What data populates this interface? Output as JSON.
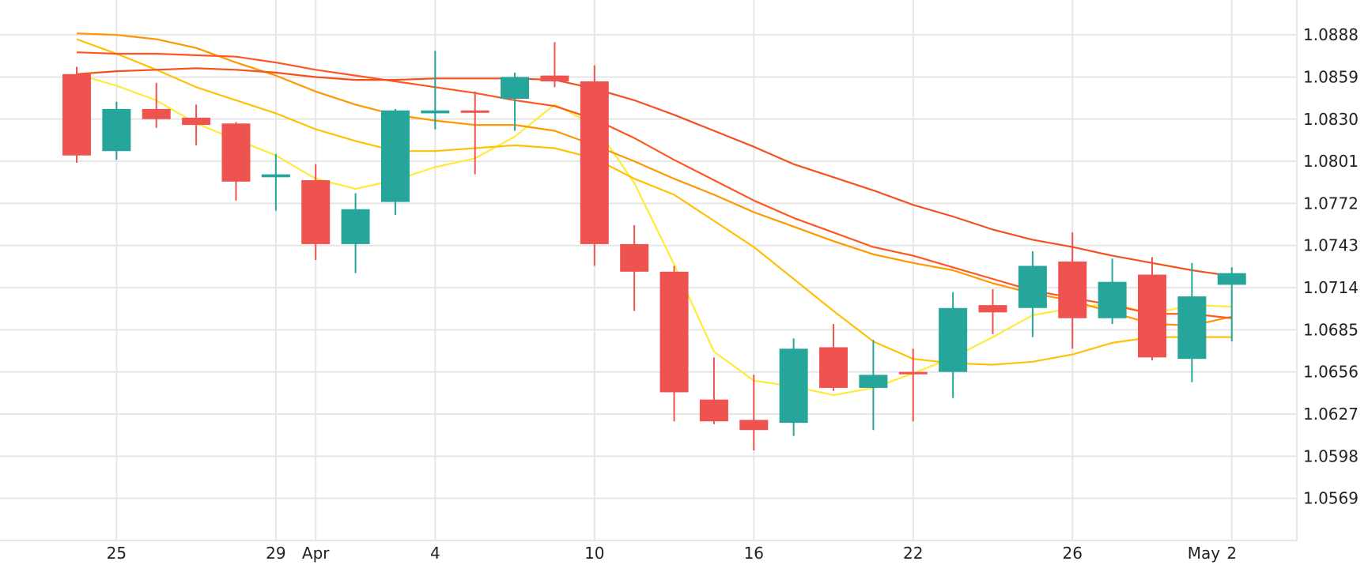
{
  "chart_data": {
    "type": "candlestick",
    "grid": true,
    "y_axis": {
      "position": "right",
      "min": 1.054,
      "max": 1.0912,
      "ticks": [
        "1.0888",
        "1.0859",
        "1.0830",
        "1.0801",
        "1.0772",
        "1.0743",
        "1.0714",
        "1.0685",
        "1.0656",
        "1.0627",
        "1.0598",
        "1.0569"
      ]
    },
    "x_axis": {
      "min": 0,
      "max": 30.6,
      "ticks": [
        {
          "i": 1,
          "label": "25"
        },
        {
          "i": 5,
          "label": "29"
        },
        {
          "i": 6,
          "label": "Apr"
        },
        {
          "i": 9,
          "label": "4"
        },
        {
          "i": 13,
          "label": "10"
        },
        {
          "i": 17,
          "label": "16"
        },
        {
          "i": 21,
          "label": "22"
        },
        {
          "i": 25,
          "label": "26"
        },
        {
          "i": 28.3,
          "label": "May"
        },
        {
          "i": 29,
          "label": "2"
        }
      ]
    },
    "colors": {
      "up": "#26a69a",
      "down": "#ef5350",
      "grid": "#e6e6e6",
      "ma": [
        "#ffeb3b",
        "#ffc107",
        "#ff9800",
        "#ff5722"
      ]
    },
    "candles": [
      [
        0,
        1.0861,
        1.0866,
        1.08,
        1.0805
      ],
      [
        1,
        1.0808,
        1.0842,
        1.0802,
        1.0837
      ],
      [
        2,
        1.0837,
        1.0855,
        1.0824,
        1.083
      ],
      [
        3,
        1.0831,
        1.084,
        1.0812,
        1.0826
      ],
      [
        4,
        1.0827,
        1.0828,
        1.0774,
        1.0787
      ],
      [
        5,
        1.079,
        1.0806,
        1.0767,
        1.0792
      ],
      [
        6,
        1.0788,
        1.0799,
        1.0733,
        1.0744
      ],
      [
        7,
        1.0744,
        1.0779,
        1.0724,
        1.0768
      ],
      [
        8,
        1.0773,
        1.0837,
        1.0764,
        1.0836
      ],
      [
        9,
        1.0834,
        1.0877,
        1.0823,
        1.0836
      ],
      [
        10,
        1.0836,
        1.0849,
        1.0792,
        1.0835
      ],
      [
        11,
        1.0844,
        1.0862,
        1.0822,
        1.0859
      ],
      [
        12,
        1.086,
        1.0883,
        1.0852,
        1.0856
      ],
      [
        13,
        1.0856,
        1.0867,
        1.0729,
        1.0744
      ],
      [
        14,
        1.0744,
        1.0757,
        1.0698,
        1.0725
      ],
      [
        15,
        1.0725,
        1.0729,
        1.0622,
        1.0642
      ],
      [
        16,
        1.0637,
        1.0666,
        1.062,
        1.0622
      ],
      [
        17,
        1.0623,
        1.0654,
        1.0602,
        1.0616
      ],
      [
        18,
        1.0621,
        1.0679,
        1.0612,
        1.0672
      ],
      [
        19,
        1.0673,
        1.0689,
        1.0643,
        1.0645
      ],
      [
        20,
        1.0645,
        1.0678,
        1.0616,
        1.0654
      ],
      [
        21,
        1.0656,
        1.0672,
        1.0622,
        1.0655
      ],
      [
        22,
        1.0656,
        1.0711,
        1.0638,
        1.07
      ],
      [
        23,
        1.0702,
        1.0713,
        1.0682,
        1.0697
      ],
      [
        24,
        1.07,
        1.0739,
        1.068,
        1.0729
      ],
      [
        25,
        1.0732,
        1.0752,
        1.0672,
        1.0693
      ],
      [
        26,
        1.0693,
        1.0734,
        1.0689,
        1.0718
      ],
      [
        27,
        1.0723,
        1.0735,
        1.0664,
        1.0666
      ],
      [
        28,
        1.0665,
        1.0731,
        1.0649,
        1.0708
      ],
      [
        29,
        1.0716,
        1.0728,
        1.0677,
        1.0724
      ]
    ],
    "moving_averages": [
      {
        "color": "#ffeb3b",
        "values": [
          [
            0,
            1.0861
          ],
          [
            1,
            1.0853
          ],
          [
            2,
            1.0843
          ],
          [
            3,
            1.0827
          ],
          [
            4,
            1.0816
          ],
          [
            5,
            1.0805
          ],
          [
            6,
            1.0789
          ],
          [
            7,
            1.0782
          ],
          [
            8,
            1.0788
          ],
          [
            9,
            1.0797
          ],
          [
            10,
            1.0803
          ],
          [
            11,
            1.0818
          ],
          [
            12,
            1.084
          ],
          [
            13,
            1.0826
          ],
          [
            14,
            1.0786
          ],
          [
            15,
            1.073
          ],
          [
            16,
            1.067
          ],
          [
            17,
            1.065
          ],
          [
            18,
            1.0646
          ],
          [
            19,
            1.064
          ],
          [
            20,
            1.0645
          ],
          [
            21,
            1.0655
          ],
          [
            22,
            1.0666
          ],
          [
            23,
            1.068
          ],
          [
            24,
            1.0695
          ],
          [
            25,
            1.07
          ],
          [
            26,
            1.0703
          ],
          [
            27,
            1.0696
          ],
          [
            28,
            1.0702
          ],
          [
            29,
            1.0701
          ]
        ]
      },
      {
        "color": "#ffc107",
        "values": [
          [
            0,
            1.0885
          ],
          [
            1,
            1.0875
          ],
          [
            2,
            1.0864
          ],
          [
            3,
            1.0852
          ],
          [
            4,
            1.0843
          ],
          [
            5,
            1.0834
          ],
          [
            6,
            1.0823
          ],
          [
            7,
            1.0815
          ],
          [
            8,
            1.0808
          ],
          [
            9,
            1.0808
          ],
          [
            10,
            1.081
          ],
          [
            11,
            1.0812
          ],
          [
            12,
            1.081
          ],
          [
            13,
            1.0803
          ],
          [
            14,
            1.0789
          ],
          [
            15,
            1.0778
          ],
          [
            16,
            1.076
          ],
          [
            17,
            1.0742
          ],
          [
            18,
            1.072
          ],
          [
            19,
            1.0698
          ],
          [
            20,
            1.0677
          ],
          [
            21,
            1.0665
          ],
          [
            22,
            1.0662
          ],
          [
            23,
            1.0661
          ],
          [
            24,
            1.0663
          ],
          [
            25,
            1.0668
          ],
          [
            26,
            1.0676
          ],
          [
            27,
            1.068
          ],
          [
            28,
            1.068
          ],
          [
            29,
            1.068
          ]
        ]
      },
      {
        "color": "#ff9800",
        "values": [
          [
            0,
            1.0889
          ],
          [
            1,
            1.0888
          ],
          [
            2,
            1.0885
          ],
          [
            3,
            1.0879
          ],
          [
            4,
            1.0869
          ],
          [
            5,
            1.086
          ],
          [
            6,
            1.0849
          ],
          [
            7,
            1.084
          ],
          [
            8,
            1.0833
          ],
          [
            9,
            1.0829
          ],
          [
            10,
            1.0826
          ],
          [
            11,
            1.0826
          ],
          [
            12,
            1.0822
          ],
          [
            13,
            1.0812
          ],
          [
            14,
            1.0801
          ],
          [
            15,
            1.0789
          ],
          [
            16,
            1.0778
          ],
          [
            17,
            1.0766
          ],
          [
            18,
            1.0756
          ],
          [
            19,
            1.0746
          ],
          [
            20,
            1.0737
          ],
          [
            21,
            1.0731
          ],
          [
            22,
            1.0726
          ],
          [
            23,
            1.0717
          ],
          [
            24,
            1.071
          ],
          [
            25,
            1.0705
          ],
          [
            26,
            1.0697
          ],
          [
            27,
            1.0689
          ],
          [
            28,
            1.0688
          ],
          [
            29,
            1.0694
          ]
        ]
      },
      {
        "color": "#ff5722",
        "values": [
          [
            0,
            1.0876
          ],
          [
            1,
            1.0875
          ],
          [
            2,
            1.0875
          ],
          [
            3,
            1.0874
          ],
          [
            4,
            1.0873
          ],
          [
            5,
            1.0869
          ],
          [
            6,
            1.0864
          ],
          [
            7,
            1.086
          ],
          [
            8,
            1.0856
          ],
          [
            9,
            1.0852
          ],
          [
            10,
            1.0848
          ],
          [
            11,
            1.0843
          ],
          [
            12,
            1.0839
          ],
          [
            13,
            1.083
          ],
          [
            14,
            1.0817
          ],
          [
            15,
            1.0802
          ],
          [
            16,
            1.0788
          ],
          [
            17,
            1.0774
          ],
          [
            18,
            1.0762
          ],
          [
            19,
            1.0752
          ],
          [
            20,
            1.0742
          ],
          [
            21,
            1.0736
          ],
          [
            22,
            1.0728
          ],
          [
            23,
            1.072
          ],
          [
            24,
            1.0712
          ],
          [
            25,
            1.0707
          ],
          [
            26,
            1.0702
          ],
          [
            27,
            1.0696
          ],
          [
            28,
            1.0696
          ],
          [
            29,
            1.0693
          ]
        ]
      },
      {
        "color": "#f4511e",
        "values": [
          [
            0,
            1.0861
          ],
          [
            1,
            1.0863
          ],
          [
            2,
            1.0864
          ],
          [
            3,
            1.0865
          ],
          [
            4,
            1.0864
          ],
          [
            5,
            1.0862
          ],
          [
            6,
            1.0859
          ],
          [
            7,
            1.0857
          ],
          [
            8,
            1.0857
          ],
          [
            9,
            1.0858
          ],
          [
            10,
            1.0858
          ],
          [
            11,
            1.0858
          ],
          [
            12,
            1.0857
          ],
          [
            13,
            1.0851
          ],
          [
            14,
            1.0843
          ],
          [
            15,
            1.0833
          ],
          [
            16,
            1.0822
          ],
          [
            17,
            1.0811
          ],
          [
            18,
            1.0799
          ],
          [
            19,
            1.079
          ],
          [
            20,
            1.0781
          ],
          [
            21,
            1.0771
          ],
          [
            22,
            1.0763
          ],
          [
            23,
            1.0754
          ],
          [
            24,
            1.0747
          ],
          [
            25,
            1.0742
          ],
          [
            26,
            1.0736
          ],
          [
            27,
            1.0731
          ],
          [
            28,
            1.0726
          ],
          [
            29,
            1.0722
          ]
        ]
      }
    ]
  }
}
